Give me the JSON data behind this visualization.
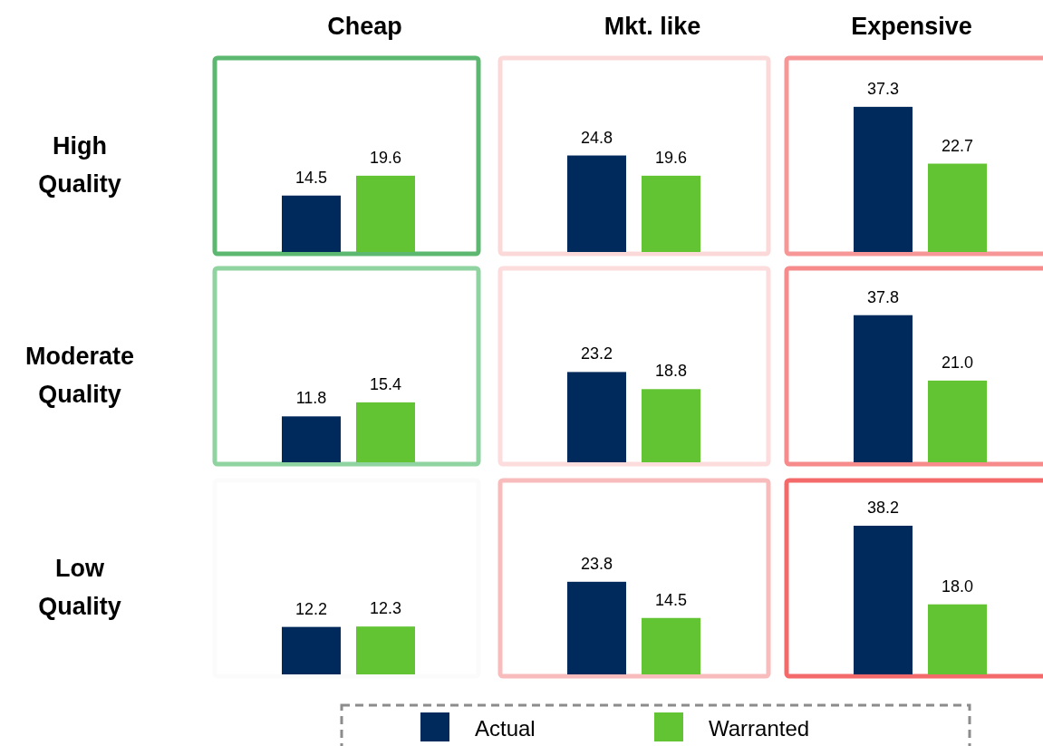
{
  "chart_data": [
    {
      "type": "bar",
      "title": "Cheap",
      "ylabel": "High Quality",
      "categories": [
        null
      ],
      "data_labels": true,
      "series": [
        {
          "color": "#002a5c",
          "values": [
            14.5
          ]
        },
        {
          "color": "#62c333",
          "values": [
            19.6
          ]
        }
      ]
    },
    {
      "type": "bar",
      "title": "Mkt. like",
      "categories": [
        null
      ],
      "data_labels": true,
      "series": [
        {
          "color": "#002a5c",
          "values": [
            24.8
          ]
        },
        {
          "color": "#62c333",
          "values": [
            19.6
          ]
        }
      ]
    },
    {
      "type": "bar",
      "title": "Expensive",
      "categories": [
        null
      ],
      "data_labels": true,
      "series": [
        {
          "color": "#002a5c",
          "values": [
            37.3
          ]
        },
        {
          "color": "#62c333",
          "values": [
            22.7
          ]
        }
      ]
    },
    {
      "type": "bar",
      "ylabel": "Moderate Quality",
      "categories": [
        null
      ],
      "data_labels": true,
      "series": [
        {
          "color": "#002a5c",
          "values": [
            11.8
          ]
        },
        {
          "color": "#62c333",
          "values": [
            15.4
          ]
        }
      ]
    },
    {
      "type": "bar",
      "categories": [
        null
      ],
      "data_labels": true,
      "series": [
        {
          "color": "#002a5c",
          "values": [
            23.2
          ]
        },
        {
          "color": "#62c333",
          "values": [
            18.8
          ]
        }
      ]
    },
    {
      "type": "bar",
      "categories": [
        null
      ],
      "series": [
        {
          "color": "#002a5c",
          "values": [
            37.8
          ],
          "value_labels": [
            "37.8"
          ]
        },
        {
          "color": "#62c333",
          "values": [
            21.0
          ],
          "value_labels": [
            "21.0"
          ]
        }
      ]
    },
    {
      "type": "bar",
      "ylabel": "Low Quality",
      "categories": [
        null
      ],
      "data_labels": true,
      "series": [
        {
          "color": "#002a5c",
          "values": [
            12.2
          ]
        },
        {
          "color": "#62c333",
          "values": [
            12.3
          ]
        }
      ]
    },
    {
      "type": "bar",
      "categories": [
        null
      ],
      "data_labels": true,
      "legend": "bottom",
      "series": [
        {
          "name": "Actual",
          "color": "#002a5c",
          "values": [
            23.8
          ]
        },
        {
          "name": "Warranted",
          "color": "#62c333",
          "values": [
            14.5
          ]
        }
      ]
    },
    {
      "type": "bar",
      "categories": [
        null
      ],
      "series": [
        {
          "color": "#002a5c",
          "values": [
            38.2
          ],
          "value_labels": [
            "38.2"
          ]
        },
        {
          "color": "#62c333",
          "values": [
            18.0
          ],
          "value_labels": [
            "18.0"
          ]
        }
      ]
    }
  ]
}
